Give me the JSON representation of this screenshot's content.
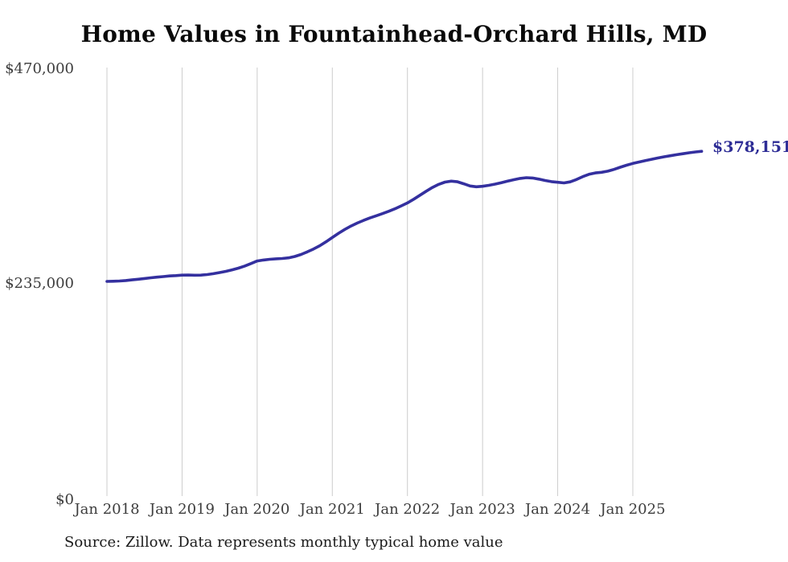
{
  "title": "Home Values in Fountainhead-Orchard Hills, MD",
  "source_note": "Source: Zillow. Data represents monthly typical home value",
  "end_label": "$378,151",
  "colors": {
    "line": "#34309f",
    "end_label_text": "#2e2d96",
    "grid": "#cccccc",
    "axis_text": "#3d3d3d",
    "title_text": "#0a0a0a",
    "background": "#ffffff"
  },
  "chart_data": {
    "type": "line",
    "title": "Home Values in Fountainhead-Orchard Hills, MD",
    "xlabel": "",
    "ylabel": "",
    "start_month": "2018-01",
    "end_month": "2025-12",
    "frequency": "monthly",
    "ylim": [
      0,
      470000
    ],
    "grid": "vertical-only",
    "legend": "none",
    "x_tick_labels": [
      "Jan 2018",
      "Jan 2019",
      "Jan 2020",
      "Jan 2021",
      "Jan 2022",
      "Jan 2023",
      "Jan 2024",
      "Jan 2025"
    ],
    "y_ticks": [
      {
        "label": "$470,000",
        "value": 470000
      },
      {
        "label": "$235,000",
        "value": 235000
      },
      {
        "label": "$0",
        "value": 0
      }
    ],
    "final_point": {
      "label": "$378,151",
      "value": 378151,
      "month": "2025-12"
    },
    "series": [
      {
        "name": "Typical home value",
        "values": [
          235400,
          235600,
          235900,
          236400,
          237100,
          237800,
          238600,
          239400,
          240100,
          240700,
          241400,
          241800,
          242300,
          242400,
          242200,
          242300,
          242900,
          243900,
          245100,
          246500,
          248100,
          250000,
          252300,
          255000,
          257800,
          258900,
          259700,
          260200,
          260600,
          261300,
          262800,
          265000,
          267800,
          271000,
          274600,
          278900,
          283600,
          288300,
          292500,
          296200,
          299500,
          302400,
          305000,
          307400,
          309800,
          312300,
          315100,
          318200,
          321500,
          325600,
          330000,
          334400,
          338500,
          341900,
          344300,
          345400,
          344700,
          342500,
          340100,
          339200,
          339800,
          340800,
          342100,
          343700,
          345400,
          347000,
          348400,
          349200,
          348800,
          347600,
          346100,
          344900,
          344200,
          343500,
          344600,
          347200,
          350300,
          352900,
          354400,
          355100,
          356300,
          358300,
          360700,
          362900,
          364800,
          366400,
          367900,
          369400,
          370800,
          372100,
          373300,
          374400,
          375500,
          376500,
          377400,
          378151
        ]
      }
    ]
  }
}
